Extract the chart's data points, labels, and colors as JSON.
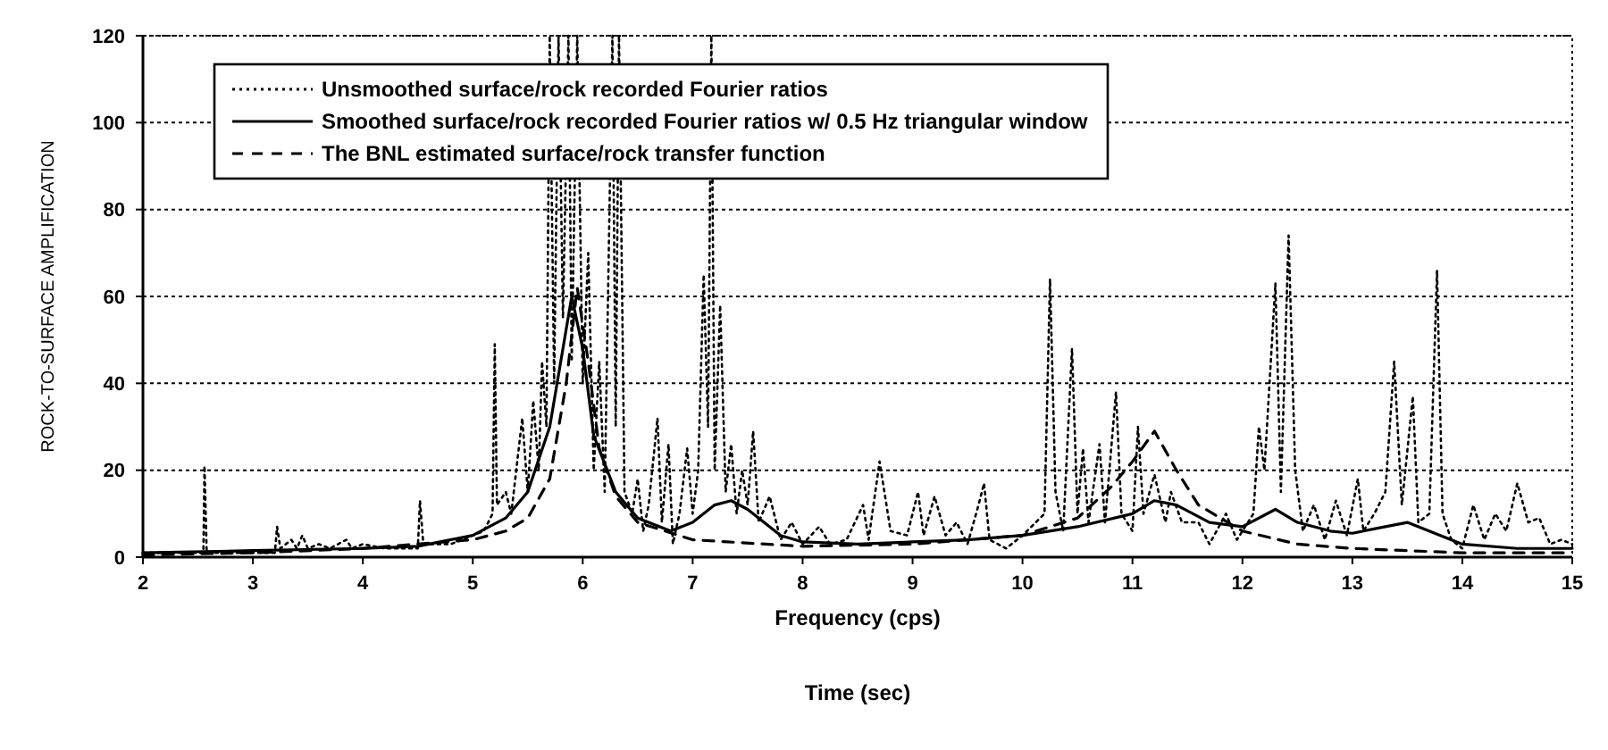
{
  "chart_data": {
    "type": "line",
    "xlabel": "Frequency (cps)",
    "ylabel": "ROCK-TO-SURFACE AMPLIFICATION",
    "xlim": [
      2,
      15
    ],
    "xticks": [
      2,
      3,
      4,
      5,
      6,
      7,
      8,
      9,
      10,
      11,
      12,
      13,
      14,
      15
    ],
    "ylim": [
      0,
      120
    ],
    "yticks": [
      0,
      20,
      40,
      60,
      80,
      100,
      120
    ],
    "grid": "y",
    "legend": "top left",
    "marker": "none",
    "annotations": [
      "Time (sec)"
    ],
    "series": [
      {
        "name": "Unsmoothed surface/rock recorded Fourier ratios",
        "color": "#000000",
        "line_style": "dotted",
        "x": [
          2.0,
          2.3,
          2.55,
          2.56,
          2.58,
          2.9,
          3.2,
          3.22,
          3.25,
          3.35,
          3.4,
          3.45,
          3.5,
          3.6,
          3.7,
          3.85,
          3.9,
          4.0,
          4.2,
          4.5,
          4.52,
          4.55,
          4.8,
          5.0,
          5.1,
          5.18,
          5.2,
          5.22,
          5.3,
          5.35,
          5.45,
          5.5,
          5.55,
          5.6,
          5.63,
          5.67,
          5.7,
          5.74,
          5.78,
          5.82,
          5.87,
          5.9,
          5.95,
          6.0,
          6.05,
          6.1,
          6.15,
          6.2,
          6.27,
          6.3,
          6.33,
          6.38,
          6.45,
          6.5,
          6.55,
          6.6,
          6.68,
          6.72,
          6.78,
          6.82,
          6.88,
          6.95,
          7.0,
          7.05,
          7.1,
          7.14,
          7.17,
          7.2,
          7.25,
          7.3,
          7.35,
          7.4,
          7.45,
          7.5,
          7.55,
          7.6,
          7.7,
          7.8,
          7.9,
          8.0,
          8.15,
          8.25,
          8.4,
          8.55,
          8.6,
          8.7,
          8.8,
          8.95,
          9.05,
          9.1,
          9.2,
          9.3,
          9.4,
          9.5,
          9.6,
          9.65,
          9.7,
          9.85,
          10.0,
          10.2,
          10.25,
          10.3,
          10.37,
          10.45,
          10.5,
          10.55,
          10.6,
          10.7,
          10.75,
          10.85,
          10.9,
          11.0,
          11.05,
          11.1,
          11.2,
          11.3,
          11.35,
          11.45,
          11.6,
          11.7,
          11.85,
          11.95,
          12.1,
          12.15,
          12.2,
          12.3,
          12.35,
          12.42,
          12.48,
          12.55,
          12.65,
          12.75,
          12.85,
          12.95,
          13.05,
          13.1,
          13.2,
          13.3,
          13.38,
          13.45,
          13.55,
          13.6,
          13.7,
          13.77,
          13.82,
          13.9,
          14.0,
          14.1,
          14.2,
          14.3,
          14.4,
          14.5,
          14.6,
          14.7,
          14.8,
          14.9,
          15.0
        ],
        "values": [
          1,
          1,
          1,
          21,
          1,
          1,
          1,
          7,
          2,
          4,
          2,
          5,
          2,
          3,
          2,
          4,
          2,
          3,
          2,
          2,
          13,
          3,
          3,
          5,
          6,
          10,
          49,
          12,
          15,
          10,
          32,
          15,
          36,
          20,
          45,
          30,
          120,
          40,
          120,
          55,
          120,
          45,
          120,
          40,
          70,
          20,
          45,
          15,
          120,
          30,
          120,
          15,
          10,
          18,
          6,
          12,
          32,
          8,
          26,
          3,
          10,
          25,
          10,
          20,
          65,
          30,
          120,
          20,
          58,
          15,
          26,
          10,
          20,
          12,
          29,
          8,
          14,
          4,
          8,
          3,
          7,
          3,
          4,
          12,
          4,
          22,
          6,
          5,
          15,
          5,
          14,
          5,
          8,
          3,
          12,
          17,
          4,
          2,
          5,
          10,
          64,
          15,
          6,
          48,
          10,
          25,
          8,
          26,
          8,
          38,
          10,
          6,
          30,
          10,
          19,
          8,
          15,
          8,
          8,
          3,
          10,
          4,
          10,
          30,
          20,
          63,
          15,
          74,
          20,
          6,
          12,
          4,
          13,
          5,
          18,
          6,
          10,
          15,
          45,
          12,
          37,
          8,
          10,
          66,
          10,
          4,
          2,
          12,
          4,
          10,
          6,
          17,
          8,
          9,
          3,
          4,
          3
        ]
      },
      {
        "name": "Smoothed surface/rock recorded Fourier ratios w/ 0.5 Hz triangular window",
        "color": "#000000",
        "line_style": "solid",
        "x": [
          2,
          3,
          4,
          4.5,
          5,
          5.3,
          5.5,
          5.7,
          5.8,
          5.9,
          6.0,
          6.1,
          6.3,
          6.5,
          6.8,
          7.0,
          7.2,
          7.35,
          7.5,
          7.8,
          8.0,
          8.5,
          9.0,
          9.5,
          10.0,
          10.5,
          11.0,
          11.2,
          11.4,
          11.7,
          12.0,
          12.3,
          12.5,
          12.8,
          13.0,
          13.3,
          13.5,
          13.8,
          14.0,
          14.5,
          15
        ],
        "values": [
          1,
          1.5,
          2,
          2.5,
          5,
          9,
          15,
          30,
          45,
          60,
          48,
          28,
          15,
          9,
          6,
          8,
          12,
          13,
          11,
          5,
          3.5,
          3,
          3.5,
          4,
          5,
          7,
          10,
          13,
          12,
          8,
          7,
          11,
          8,
          6,
          5.5,
          7,
          8,
          5,
          3,
          2,
          2
        ]
      },
      {
        "name": "The BNL estimated surface/rock transfer function",
        "color": "#000000",
        "line_style": "dashed",
        "x": [
          2,
          3,
          4,
          4.5,
          5,
          5.3,
          5.5,
          5.7,
          5.85,
          5.95,
          6.05,
          6.15,
          6.3,
          6.5,
          7,
          8,
          9,
          10,
          10.5,
          10.8,
          11.0,
          11.2,
          11.4,
          11.6,
          12,
          12.5,
          13,
          14,
          14.5,
          15
        ],
        "values": [
          0.5,
          1,
          2,
          3,
          4,
          6,
          9,
          18,
          40,
          62,
          45,
          25,
          14,
          8,
          4,
          2.5,
          3,
          5,
          9,
          16,
          22,
          29,
          20,
          12,
          6,
          3,
          2,
          1,
          1,
          1
        ]
      }
    ]
  }
}
